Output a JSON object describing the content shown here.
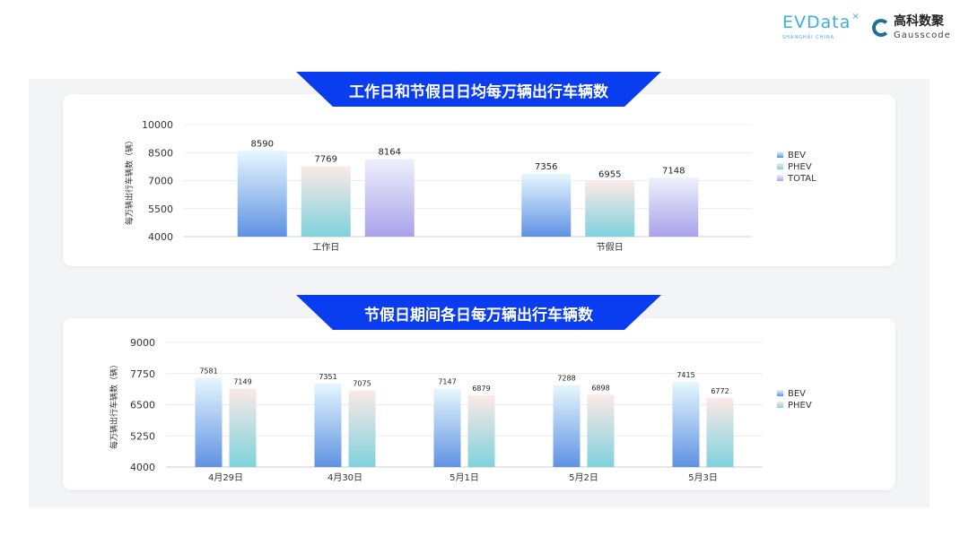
{
  "logos": {
    "evdata": "EVData",
    "evdata_sub": "SHANGHAI CHINA",
    "gauss_cn": "高科数聚",
    "gauss_en": "Gausscode"
  },
  "colors": {
    "banner": "#0a3cf0",
    "bev": [
      "#e6f7fd",
      "#5f92e3"
    ],
    "phev": [
      "#fbe9e6",
      "#7fd2dc"
    ],
    "total": [
      "#eef0fb",
      "#a9a2ea"
    ]
  },
  "chart_data": [
    {
      "type": "bar",
      "title": "工作日和节假日日均每万辆出行车辆数",
      "ylabel": "每万辆出行车辆数（辆）",
      "ylim": [
        4000,
        10000
      ],
      "yticks": [
        4000,
        5500,
        7000,
        8500,
        10000
      ],
      "grid": true,
      "legend": "right",
      "categories": [
        "工作日",
        "节假日"
      ],
      "series": [
        {
          "name": "BEV",
          "key": "bev",
          "values": [
            8590,
            7356
          ]
        },
        {
          "name": "PHEV",
          "key": "phev",
          "values": [
            7769,
            6955
          ]
        },
        {
          "name": "TOTAL",
          "key": "total",
          "values": [
            8164,
            7148
          ]
        }
      ]
    },
    {
      "type": "bar",
      "title": "节假日期间各日每万辆出行车辆数",
      "ylabel": "每万辆出行车辆数（辆）",
      "ylim": [
        4000,
        9000
      ],
      "yticks": [
        4000,
        5250,
        6500,
        7750,
        9000
      ],
      "grid": true,
      "legend": "right",
      "categories": [
        "4月29日",
        "4月30日",
        "5月1日",
        "5月2日",
        "5月3日"
      ],
      "series": [
        {
          "name": "BEV",
          "key": "bev",
          "values": [
            7581,
            7351,
            7147,
            7288,
            7415
          ]
        },
        {
          "name": "PHEV",
          "key": "phev",
          "values": [
            7149,
            7075,
            6879,
            6898,
            6772
          ]
        }
      ]
    }
  ]
}
